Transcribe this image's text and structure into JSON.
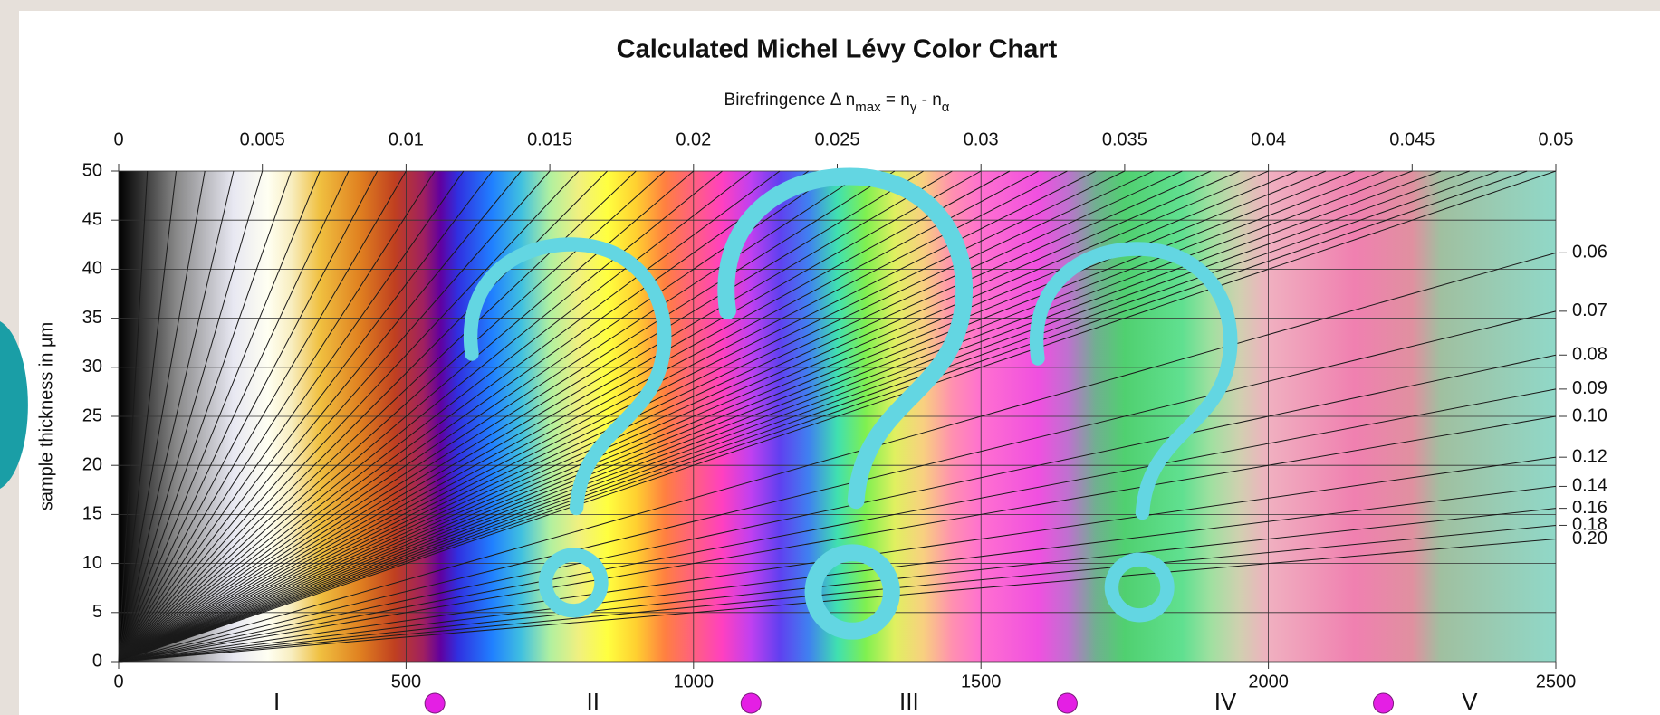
{
  "chart_data": {
    "type": "michel-levy",
    "title": "Calculated Michel Lévy Color Chart",
    "subtitle": [
      {
        "text": "Birefringence Δ n",
        "shift": 0
      },
      {
        "text": "max",
        "shift": 1
      },
      {
        "text": " = n",
        "shift": 0
      },
      {
        "text": "γ",
        "shift": 1
      },
      {
        "text": " - n",
        "shift": 0
      },
      {
        "text": "α",
        "shift": 1
      }
    ],
    "ylabel": "sample thickness in µm",
    "xlim": [
      0,
      2500
    ],
    "xticks": [
      0,
      500,
      1000,
      1500,
      2000,
      2500
    ],
    "x2lim": [
      0,
      0.05
    ],
    "x2ticks": [
      0,
      0.005,
      0.01,
      0.015,
      0.02,
      0.025,
      0.03,
      0.035,
      0.04,
      0.045,
      0.05
    ],
    "ylim": [
      0,
      50
    ],
    "yticks": [
      0,
      5,
      10,
      15,
      20,
      25,
      30,
      35,
      40,
      45,
      50
    ],
    "birefringence_lines": [
      0.001,
      0.002,
      0.003,
      0.004,
      0.005,
      0.006,
      0.007,
      0.008,
      0.009,
      0.01,
      0.011,
      0.012,
      0.013,
      0.014,
      0.015,
      0.016,
      0.017,
      0.018,
      0.019,
      0.02,
      0.021,
      0.022,
      0.023,
      0.024,
      0.025,
      0.026,
      0.027,
      0.028,
      0.029,
      0.03,
      0.031,
      0.032,
      0.033,
      0.034,
      0.035,
      0.036,
      0.037,
      0.038,
      0.039,
      0.04,
      0.041,
      0.042,
      0.043,
      0.044,
      0.045,
      0.046,
      0.047,
      0.048,
      0.049,
      0.05
    ],
    "right_labels": [
      {
        "value": 0.06,
        "label": "0.06"
      },
      {
        "value": 0.07,
        "label": "0.07"
      },
      {
        "value": 0.08,
        "label": "0.08"
      },
      {
        "value": 0.09,
        "label": "0.09"
      },
      {
        "value": 0.1,
        "label": "0.10"
      },
      {
        "value": 0.12,
        "label": "0.12"
      },
      {
        "value": 0.14,
        "label": "0.14"
      },
      {
        "value": 0.16,
        "label": "0.16"
      },
      {
        "value": 0.18,
        "label": "0.18"
      },
      {
        "value": 0.2,
        "label": "0.20"
      }
    ],
    "orders": {
      "labels": [
        "I",
        "II",
        "III",
        "IV",
        "V"
      ],
      "markers": [
        550,
        1100,
        1650,
        2200
      ],
      "color": "#e41fe4"
    },
    "line_color": "#1a1a1a",
    "grid": true
  }
}
